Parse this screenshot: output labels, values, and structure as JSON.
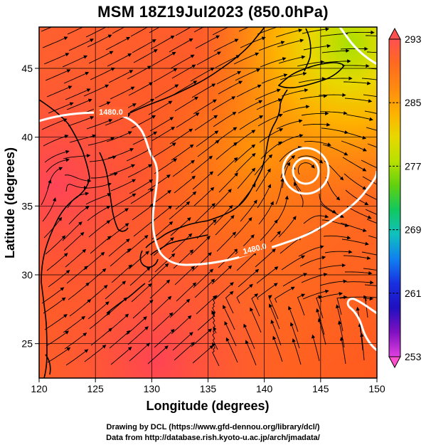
{
  "title": "MSM 18Z19Jul2023 (850.0hPa)",
  "axes": {
    "x_label": "Longitude (degrees)",
    "y_label": "Latitude  (degrees)",
    "x_ticks": [
      "120",
      "125",
      "130",
      "135",
      "140",
      "145",
      "150"
    ],
    "y_ticks": [
      "25",
      "30",
      "35",
      "40",
      "45"
    ]
  },
  "colorbar": {
    "ticks": [
      "293",
      "285",
      "277",
      "269",
      "261",
      "253"
    ],
    "colors": [
      "#ff5050",
      "#ff6a20",
      "#ff8a10",
      "#ffb000",
      "#e8d800",
      "#b8e000",
      "#60d010",
      "#10c860",
      "#10c0c0",
      "#1080f0",
      "#1830e0",
      "#2010c0",
      "#8010c0",
      "#e040e0"
    ]
  },
  "contours": [
    {
      "label": "1480.0"
    },
    {
      "label": "1480.0"
    }
  ],
  "credits": [
    "Drawing by DCL (https://www.gfd-dennou.org/library/dcl/)",
    "Data from http://database.rish.kyoto-u.ac.jp/arch/jmadata/"
  ],
  "map": {
    "lon_range": [
      120,
      150
    ],
    "lat_range": [
      22.5,
      48
    ],
    "field": "850hPa temperature (K) with wind streamlines",
    "vortex_center": {
      "lon": 143.5,
      "lat": 37.8
    }
  }
}
